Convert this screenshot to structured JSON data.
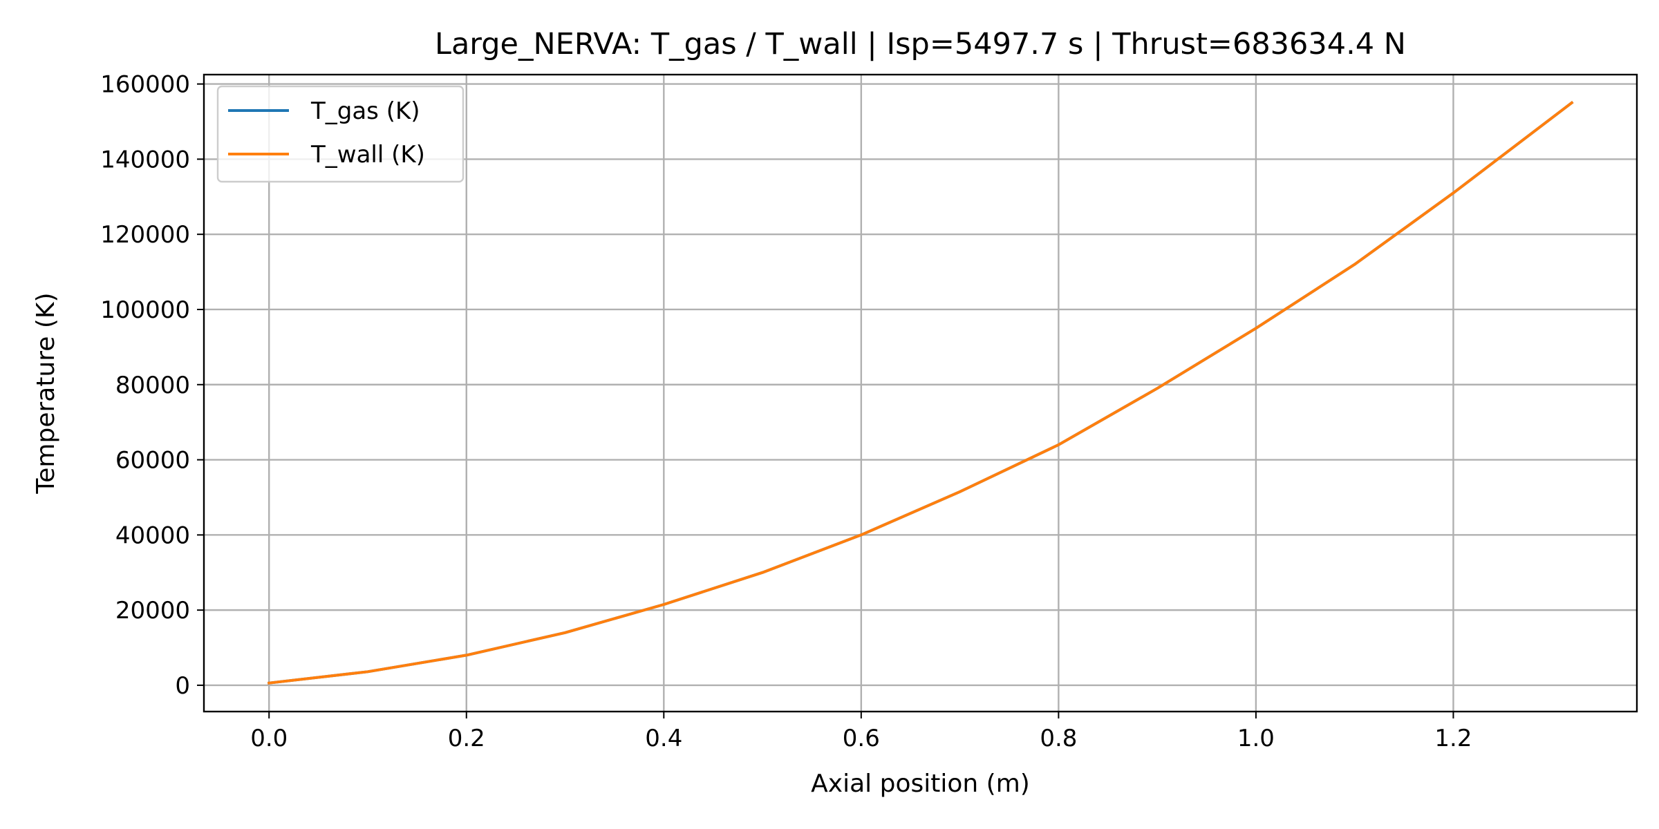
{
  "chart_data": {
    "type": "line",
    "title": "Large_NERVA: T_gas / T_wall | Isp=5497.7 s | Thrust=683634.4 N",
    "xlabel": "Axial position (m)",
    "ylabel": "Temperature (K)",
    "xlim": [
      -0.066,
      1.386
    ],
    "ylim": [
      -7000,
      162500
    ],
    "xticks": [
      0.0,
      0.2,
      0.4,
      0.6,
      0.8,
      1.0,
      1.2
    ],
    "xtick_labels": [
      "0.0",
      "0.2",
      "0.4",
      "0.6",
      "0.8",
      "1.0",
      "1.2"
    ],
    "yticks": [
      0,
      20000,
      40000,
      60000,
      80000,
      100000,
      120000,
      140000,
      160000
    ],
    "ytick_labels": [
      "0",
      "20000",
      "40000",
      "60000",
      "80000",
      "100000",
      "120000",
      "140000",
      "160000"
    ],
    "grid": true,
    "legend_position": "top-left",
    "x": [
      0.0,
      0.1,
      0.2,
      0.3,
      0.4,
      0.5,
      0.6,
      0.7,
      0.8,
      0.9,
      1.0,
      1.1,
      1.2,
      1.32
    ],
    "series": [
      {
        "name": "T_gas (K)",
        "color": "#1f77b4",
        "values": [
          600,
          3600,
          8000,
          14000,
          21500,
          30000,
          40000,
          51500,
          64000,
          79000,
          95000,
          112000,
          131000,
          155000
        ]
      },
      {
        "name": "T_wall (K)",
        "color": "#ff7f0e",
        "values": [
          600,
          3600,
          8000,
          14000,
          21500,
          30000,
          40000,
          51500,
          64000,
          79000,
          95000,
          112000,
          131000,
          155000
        ]
      }
    ]
  }
}
